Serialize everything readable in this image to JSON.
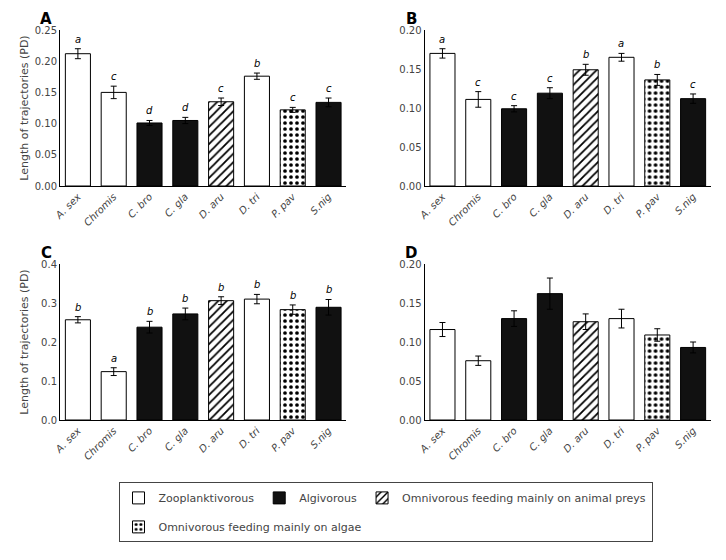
{
  "chart_data": [
    {
      "type": "bar",
      "title": "A",
      "categories": [
        "A. sex",
        "Chromis",
        "C. bro",
        "C. gla",
        "D. aru",
        "D. tri",
        "P. pav",
        "S.nig"
      ],
      "series": [
        {
          "name": "Zooplanktivorous",
          "color": "white",
          "values": [
            0.212,
            0.15,
            null,
            null,
            null,
            0.176,
            null,
            null
          ],
          "errors": [
            0.008,
            0.01,
            null,
            null,
            null,
            0.005,
            null,
            null
          ]
        },
        {
          "name": "Algivorous",
          "color": "#111111",
          "values": [
            null,
            null,
            0.101,
            0.105,
            null,
            null,
            null,
            0.134
          ],
          "errors": [
            null,
            null,
            0.004,
            0.005,
            null,
            null,
            null,
            0.007
          ]
        },
        {
          "name": "Omnivorous feeding mainly on animal preys",
          "color": "white",
          "marker": "hatch",
          "values": [
            null,
            null,
            null,
            null,
            0.135,
            null,
            null,
            null
          ],
          "errors": [
            null,
            null,
            null,
            null,
            0.006,
            null,
            null,
            null
          ]
        },
        {
          "name": "Omnivorous feeding mainly on algae",
          "color": "white",
          "marker": "dots",
          "values": [
            null,
            null,
            null,
            null,
            null,
            null,
            0.122,
            null
          ],
          "errors": [
            null,
            null,
            null,
            null,
            null,
            null,
            0.004,
            null
          ]
        }
      ],
      "annotations": [
        {
          "category": "A. sex",
          "text": "a"
        },
        {
          "category": "Chromis",
          "text": "c"
        },
        {
          "category": "C. bro",
          "text": "d"
        },
        {
          "category": "C. gla",
          "text": "d"
        },
        {
          "category": "D. aru",
          "text": "c"
        },
        {
          "category": "D. tri",
          "text": "b"
        },
        {
          "category": "P. pav",
          "text": "c"
        },
        {
          "category": "S.nig",
          "text": "c"
        }
      ],
      "ylabel": "Length of trajectories (PD)",
      "ylim": [
        0,
        0.25
      ],
      "yticks": [
        {
          "value": 0.0,
          "label": "0.00"
        },
        0.05,
        {
          "value": 0.1,
          "label": "0.10"
        },
        0.15,
        {
          "value": 0.2,
          "label": "0.20"
        },
        0.25
      ],
      "grid": false,
      "legend": "bottom"
    },
    {
      "type": "bar",
      "title": "B",
      "categories": [
        "A. sex",
        "Chromis",
        "C. bro",
        "C. gla",
        "D. aru",
        "D. tri",
        "P. pav",
        "S.nig"
      ],
      "series": [
        {
          "name": "Zooplanktivorous",
          "color": "white",
          "values": [
            0.17,
            0.111,
            null,
            null,
            null,
            0.165,
            null,
            null
          ],
          "errors": [
            0.006,
            0.01,
            null,
            null,
            null,
            0.005,
            null,
            null
          ]
        },
        {
          "name": "Algivorous",
          "color": "#111111",
          "values": [
            null,
            null,
            0.099,
            0.119,
            null,
            null,
            null,
            0.112
          ],
          "errors": [
            null,
            null,
            0.004,
            0.007,
            null,
            null,
            null,
            0.006
          ]
        },
        {
          "name": "Omnivorous feeding mainly on animal preys",
          "color": "white",
          "marker": "hatch",
          "values": [
            null,
            null,
            null,
            null,
            0.149,
            null,
            null,
            null
          ],
          "errors": [
            null,
            null,
            null,
            null,
            0.007,
            null,
            null,
            null
          ]
        },
        {
          "name": "Omnivorous feeding mainly on algae",
          "color": "white",
          "marker": "dots",
          "values": [
            null,
            null,
            null,
            null,
            null,
            null,
            0.136,
            null
          ],
          "errors": [
            null,
            null,
            null,
            null,
            null,
            null,
            0.007,
            null
          ]
        }
      ],
      "annotations": [
        {
          "category": "A. sex",
          "text": "a"
        },
        {
          "category": "Chromis",
          "text": "c"
        },
        {
          "category": "C. bro",
          "text": "c"
        },
        {
          "category": "C. gla",
          "text": "c"
        },
        {
          "category": "D. aru",
          "text": "b"
        },
        {
          "category": "D. tri",
          "text": "a"
        },
        {
          "category": "P. pav",
          "text": "b"
        },
        {
          "category": "S.nig",
          "text": "c"
        }
      ],
      "ylim": [
        0,
        0.2
      ],
      "yticks": [
        {
          "value": 0.0,
          "label": "0.00"
        },
        0.05,
        {
          "value": 0.1,
          "label": "0.10"
        },
        0.15,
        {
          "value": 0.2,
          "label": "0.20"
        }
      ],
      "grid": false,
      "legend": "bottom"
    },
    {
      "type": "bar",
      "title": "C",
      "categories": [
        "A. sex",
        "Chromis",
        "C. bro",
        "C. gla",
        "D. aru",
        "D. tri",
        "P. pav",
        "S.nig"
      ],
      "series": [
        {
          "name": "Zooplanktivorous",
          "color": "white",
          "values": [
            0.257,
            0.124,
            null,
            null,
            null,
            0.31,
            null,
            null
          ],
          "errors": [
            0.008,
            0.01,
            null,
            null,
            null,
            0.012,
            null,
            null
          ]
        },
        {
          "name": "Algivorous",
          "color": "#111111",
          "values": [
            null,
            null,
            0.238,
            0.272,
            null,
            null,
            null,
            0.289
          ],
          "errors": [
            null,
            null,
            0.015,
            0.015,
            null,
            null,
            null,
            0.02
          ]
        },
        {
          "name": "Omnivorous feeding mainly on animal preys",
          "color": "white",
          "marker": "hatch",
          "values": [
            null,
            null,
            null,
            null,
            0.306,
            null,
            null,
            null
          ],
          "errors": [
            null,
            null,
            null,
            null,
            0.01,
            null,
            null,
            null
          ]
        },
        {
          "name": "Omnivorous feeding mainly on algae",
          "color": "white",
          "marker": "dots",
          "values": [
            null,
            null,
            null,
            null,
            null,
            null,
            0.283,
            null
          ],
          "errors": [
            null,
            null,
            null,
            null,
            null,
            null,
            0.012,
            null
          ]
        }
      ],
      "annotations": [
        {
          "category": "A. sex",
          "text": "b"
        },
        {
          "category": "Chromis",
          "text": "a"
        },
        {
          "category": "C. bro",
          "text": "b"
        },
        {
          "category": "C. gla",
          "text": "b"
        },
        {
          "category": "D. aru",
          "text": "b"
        },
        {
          "category": "D. tri",
          "text": "b"
        },
        {
          "category": "P. pav",
          "text": "b"
        },
        {
          "category": "S.nig",
          "text": "b"
        }
      ],
      "ylabel": "Length of trajectories (PD)",
      "ylim": [
        0,
        0.4
      ],
      "yticks": [
        {
          "value": 0.0,
          "label": "0.0"
        },
        0.1,
        0.2,
        0.3,
        0.4
      ],
      "grid": false,
      "legend": "bottom"
    },
    {
      "type": "bar",
      "title": "D",
      "categories": [
        "A. sex",
        "Chromis",
        "C. bro",
        "C. gla",
        "D. aru",
        "D. tri",
        "P. pav",
        "S.nig"
      ],
      "series": [
        {
          "name": "Zooplanktivorous",
          "color": "white",
          "values": [
            0.116,
            0.076,
            null,
            null,
            null,
            0.13,
            null,
            null
          ],
          "errors": [
            0.009,
            0.006,
            null,
            null,
            null,
            0.012,
            null,
            null
          ]
        },
        {
          "name": "Algivorous",
          "color": "#111111",
          "values": [
            null,
            null,
            0.13,
            0.162,
            null,
            null,
            null,
            0.093
          ],
          "errors": [
            null,
            null,
            0.01,
            0.02,
            null,
            null,
            null,
            0.007
          ]
        },
        {
          "name": "Omnivorous feeding mainly on animal preys",
          "color": "white",
          "marker": "hatch",
          "values": [
            null,
            null,
            null,
            null,
            0.126,
            null,
            null,
            null
          ],
          "errors": [
            null,
            null,
            null,
            null,
            0.01,
            null,
            null,
            null
          ]
        },
        {
          "name": "Omnivorous feeding mainly on algae",
          "color": "white",
          "marker": "dots",
          "values": [
            null,
            null,
            null,
            null,
            null,
            null,
            0.109,
            null
          ],
          "errors": [
            null,
            null,
            null,
            null,
            null,
            null,
            0.008,
            null
          ]
        }
      ],
      "ylim": [
        0,
        0.2
      ],
      "yticks": [
        {
          "value": 0.0,
          "label": "0.00"
        },
        0.05,
        {
          "value": 0.1,
          "label": "0.10"
        },
        0.15,
        {
          "value": 0.2,
          "label": "0.20"
        }
      ],
      "grid": false,
      "legend": "bottom"
    }
  ]
}
